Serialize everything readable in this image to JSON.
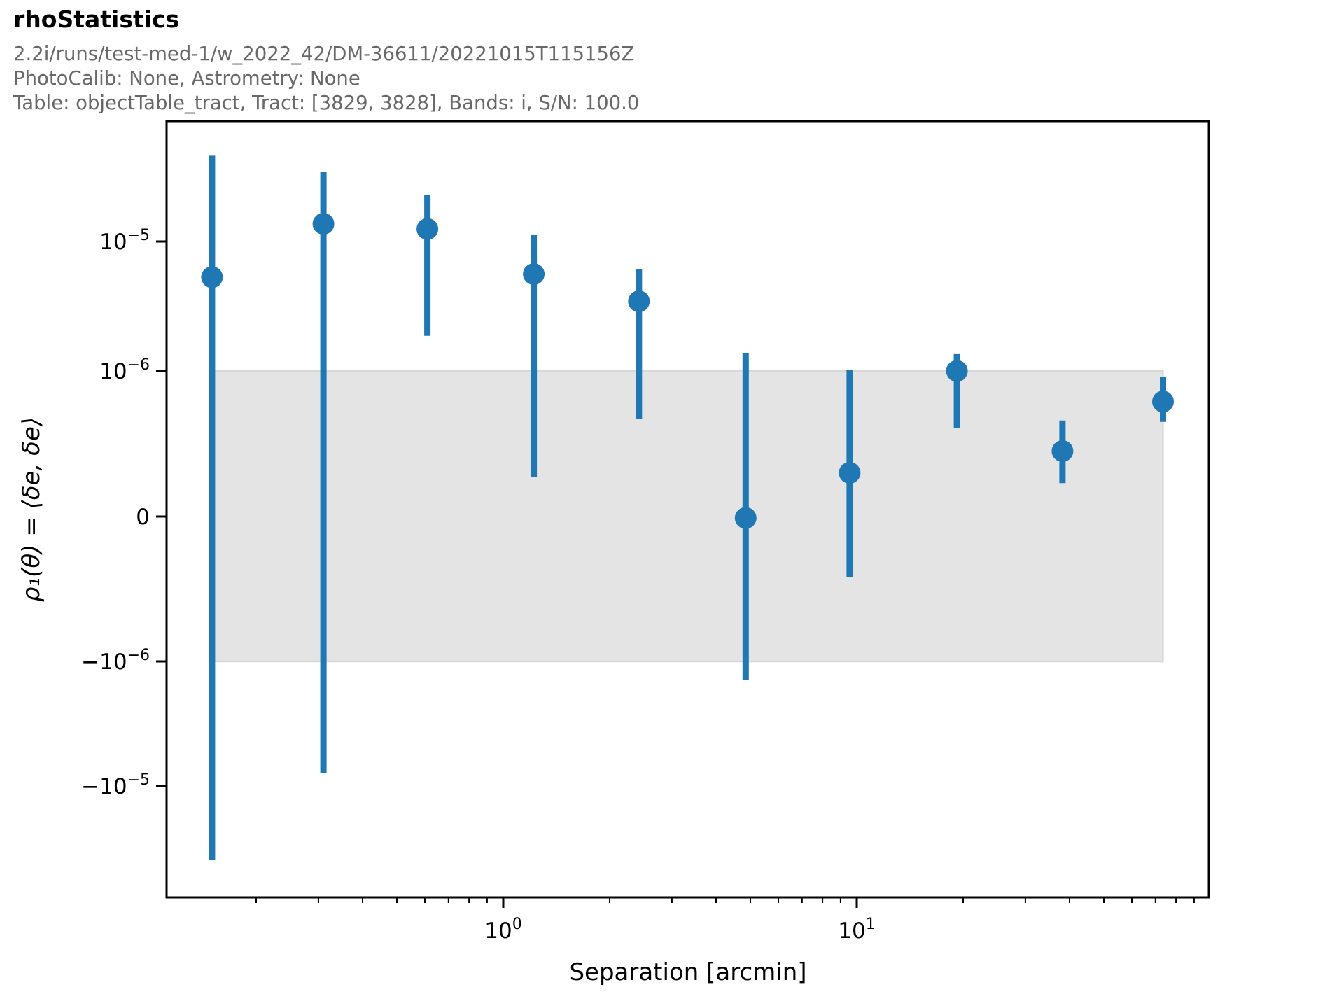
{
  "header": {
    "title": "rhoStatistics",
    "subtitle_lines": [
      "2.2i/runs/test-med-1/w_2022_42/DM-36611/20221015T115156Z",
      "PhotoCalib: None, Astrometry: None",
      "Table: objectTable_tract, Tract: [3829, 3828], Bands: i, S/N: 100.0"
    ]
  },
  "colors": {
    "accent_blue": "#1f77b4",
    "band_fill": "#e4e4e4",
    "band_edge": "#d8d8d8",
    "axis_black": "#000000",
    "subtitle_gray": "#686868"
  },
  "chart_data": {
    "type": "scatter",
    "title": "rhoStatistics",
    "xlabel": "Separation [arcmin]",
    "ylabel": "ρ₁(θ) = ⟨δe, δe⟩",
    "x_scale": "log",
    "y_scale": "symlog",
    "y_linthresh": 1e-06,
    "xlim": [
      0.112,
      99
    ],
    "ylim": [
      -8.6e-05,
      8.6e-05
    ],
    "grid": false,
    "legend": "none",
    "x_ticks": [
      {
        "base": "10",
        "exp": "0",
        "value": 1
      },
      {
        "base": "10",
        "exp": "1",
        "value": 10
      }
    ],
    "y_ticks": [
      {
        "base": "10",
        "exp": "−5",
        "value": 1e-05
      },
      {
        "base": "10",
        "exp": "−6",
        "value": 1e-06
      },
      {
        "base": "0",
        "exp": "",
        "value": 0
      },
      {
        "base": "−10",
        "exp": "−6",
        "value": -1e-06
      },
      {
        "base": "−10",
        "exp": "−5",
        "value": -1e-05
      }
    ],
    "band": {
      "x_start": 0.15,
      "x_end": 73.5,
      "y_lo": -1e-06,
      "y_hi": 1e-06
    },
    "series": [
      {
        "name": "rho1",
        "x": [
          0.15,
          0.31,
          0.61,
          1.22,
          2.42,
          4.85,
          9.55,
          19.2,
          38.2,
          73.5
        ],
        "y": [
          5.3e-06,
          1.37e-05,
          1.25e-05,
          5.6e-06,
          3.45e-06,
          -1e-08,
          3e-07,
          1e-06,
          4.5e-07,
          7.9e-07
        ],
        "err_lo": [
          -3.9e-05,
          -7.9e-06,
          1.87e-06,
          2.7e-07,
          6.7e-07,
          -1.4e-06,
          -4.2e-07,
          6.1e-07,
          2.3e-07,
          6.5e-07
        ],
        "err_hi": [
          4.6e-05,
          3.45e-05,
          2.3e-05,
          1.12e-05,
          6.1e-06,
          1.37e-06,
          1.02e-06,
          1.35e-06,
          6.6e-07,
          9.6e-07
        ]
      }
    ]
  }
}
